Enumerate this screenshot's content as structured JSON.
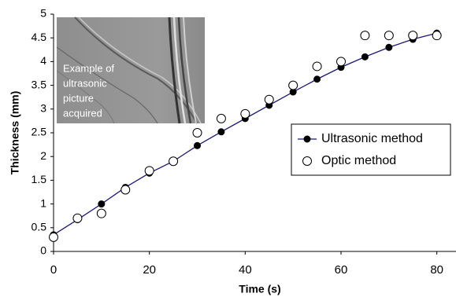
{
  "chart_data": {
    "type": "scatter",
    "x_label": "Time (s)",
    "y_label": "Thickness (mm)",
    "annotation": [
      "Example of",
      "ultrasonic",
      "picture",
      "acquired"
    ],
    "xlim": [
      0,
      84
    ],
    "xticks": [
      0,
      20,
      40,
      60,
      80
    ],
    "ylim": [
      0,
      5
    ],
    "yticks": [
      0,
      0.5,
      1,
      1.5,
      2,
      2.5,
      3,
      3.5,
      4,
      4.5,
      5
    ],
    "grid": false,
    "legend": "right",
    "series": [
      {
        "name": "Ultrasonic method",
        "color": "#1a1a6e",
        "marker": "filled",
        "line": true,
        "x": [
          0,
          5,
          10,
          15,
          20,
          25,
          30,
          35,
          40,
          45,
          50,
          55,
          60,
          65,
          70,
          75,
          80
        ],
        "values": [
          0.35,
          0.67,
          1.0,
          1.35,
          1.65,
          1.9,
          2.23,
          2.52,
          2.8,
          3.08,
          3.36,
          3.63,
          3.88,
          4.1,
          4.3,
          4.47,
          4.6
        ]
      },
      {
        "name": "Optic method",
        "color": "#000000",
        "marker": "open",
        "line": false,
        "x": [
          0,
          5,
          10,
          15,
          20,
          25,
          30,
          35,
          40,
          45,
          50,
          55,
          60,
          65,
          70,
          75,
          80
        ],
        "values": [
          0.3,
          0.7,
          0.8,
          1.3,
          1.7,
          1.9,
          2.5,
          2.8,
          2.9,
          3.2,
          3.5,
          3.9,
          4.0,
          4.55,
          4.55,
          4.55,
          4.55
        ]
      }
    ]
  }
}
